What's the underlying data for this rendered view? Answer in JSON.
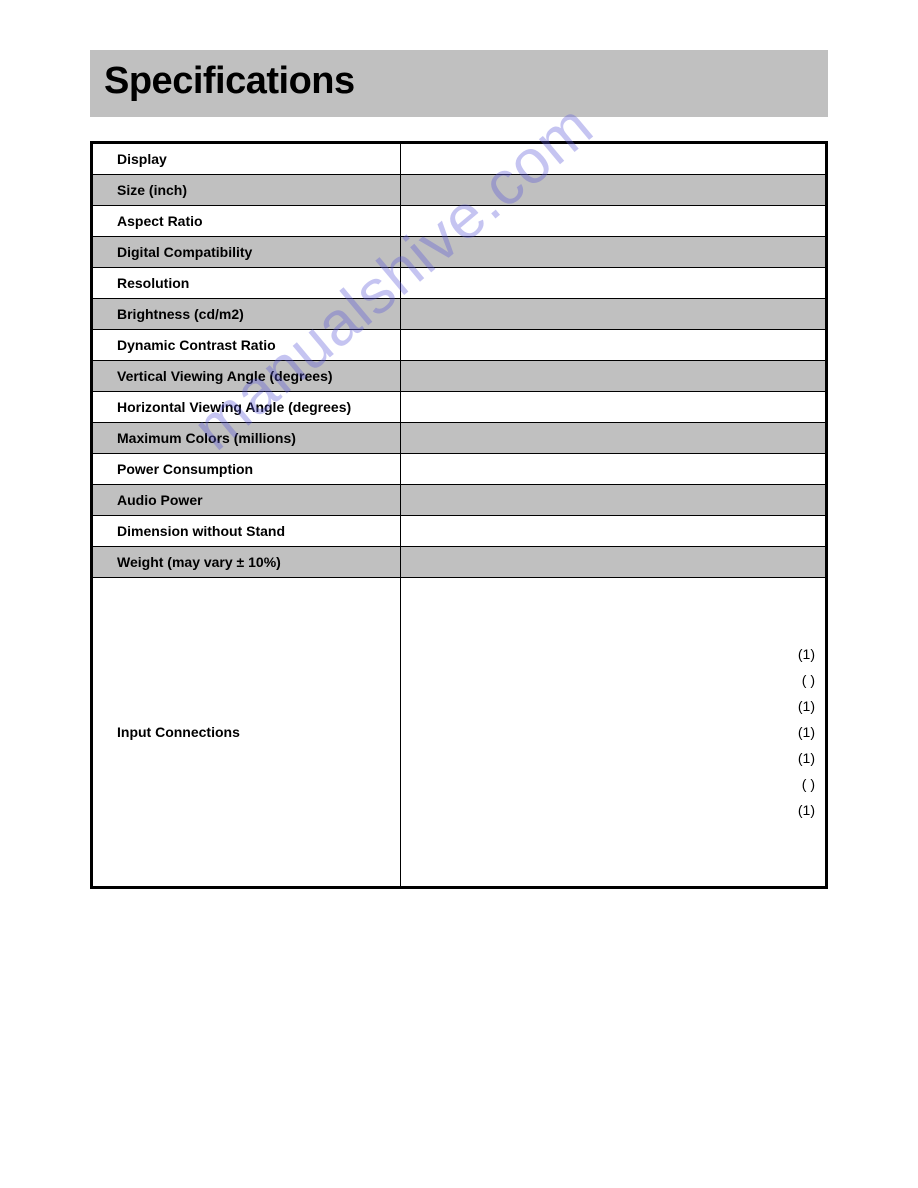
{
  "header": {
    "title": "Specifications"
  },
  "watermark": {
    "text": "manualshive.com"
  },
  "table": {
    "rows": [
      {
        "label": "Display",
        "value": "",
        "shade": false
      },
      {
        "label": "Size (inch)",
        "value": "",
        "shade": true
      },
      {
        "label": "Aspect Ratio",
        "value": "",
        "shade": false
      },
      {
        "label": "Digital Compatibility",
        "value": "",
        "shade": true
      },
      {
        "label": "Resolution",
        "value": "",
        "shade": false
      },
      {
        "label": "Brightness (cd/m2)",
        "value": "",
        "shade": true
      },
      {
        "label": "Dynamic Contrast Ratio",
        "value": "",
        "shade": false
      },
      {
        "label": "Vertical Viewing Angle (degrees)",
        "value": "",
        "shade": true
      },
      {
        "label": "Horizontal Viewing Angle (degrees)",
        "value": "",
        "shade": false
      },
      {
        "label": "Maximum Colors (millions)",
        "value": "",
        "shade": true
      },
      {
        "label": "Power Consumption",
        "value": "",
        "shade": false
      },
      {
        "label": "Audio Power",
        "value": "",
        "shade": true
      },
      {
        "label": "Dimension without Stand",
        "value": "",
        "shade": false
      },
      {
        "label": "Weight  (may vary ± 10%)",
        "value": "",
        "shade": true
      }
    ],
    "input_connections": {
      "label": "Input Connections",
      "values": [
        "(1)",
        "(  )",
        "(1)",
        "(1)",
        "(1)",
        "(  )",
        "(1)"
      ]
    }
  },
  "style": {
    "header_bg": "#c0c0c0",
    "shade_bg": "#c0c0c0",
    "border_color": "#000000",
    "text_color": "#000000",
    "page_bg": "#ffffff",
    "watermark_color": "rgba(88,86,214,0.35)"
  }
}
